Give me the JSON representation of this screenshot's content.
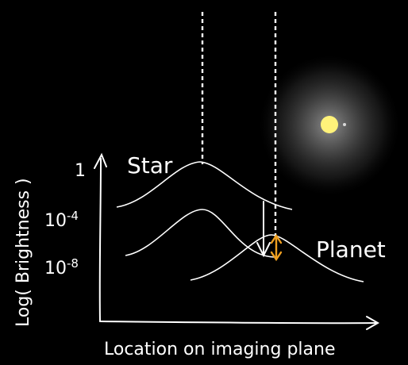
{
  "labels": {
    "star": "Star",
    "planet": "Planet",
    "ylabel": "Log( Brightness )",
    "xlabel": "Location on imaging plane"
  },
  "ticks": {
    "t1": "1",
    "t4": "10",
    "t4_exp": "-4",
    "t8": "10",
    "t8_exp": "-8"
  },
  "colors": {
    "background": "#000000",
    "ink": "#ffffff",
    "highlight": "#f0a020",
    "star_core": "#fff27a"
  }
}
